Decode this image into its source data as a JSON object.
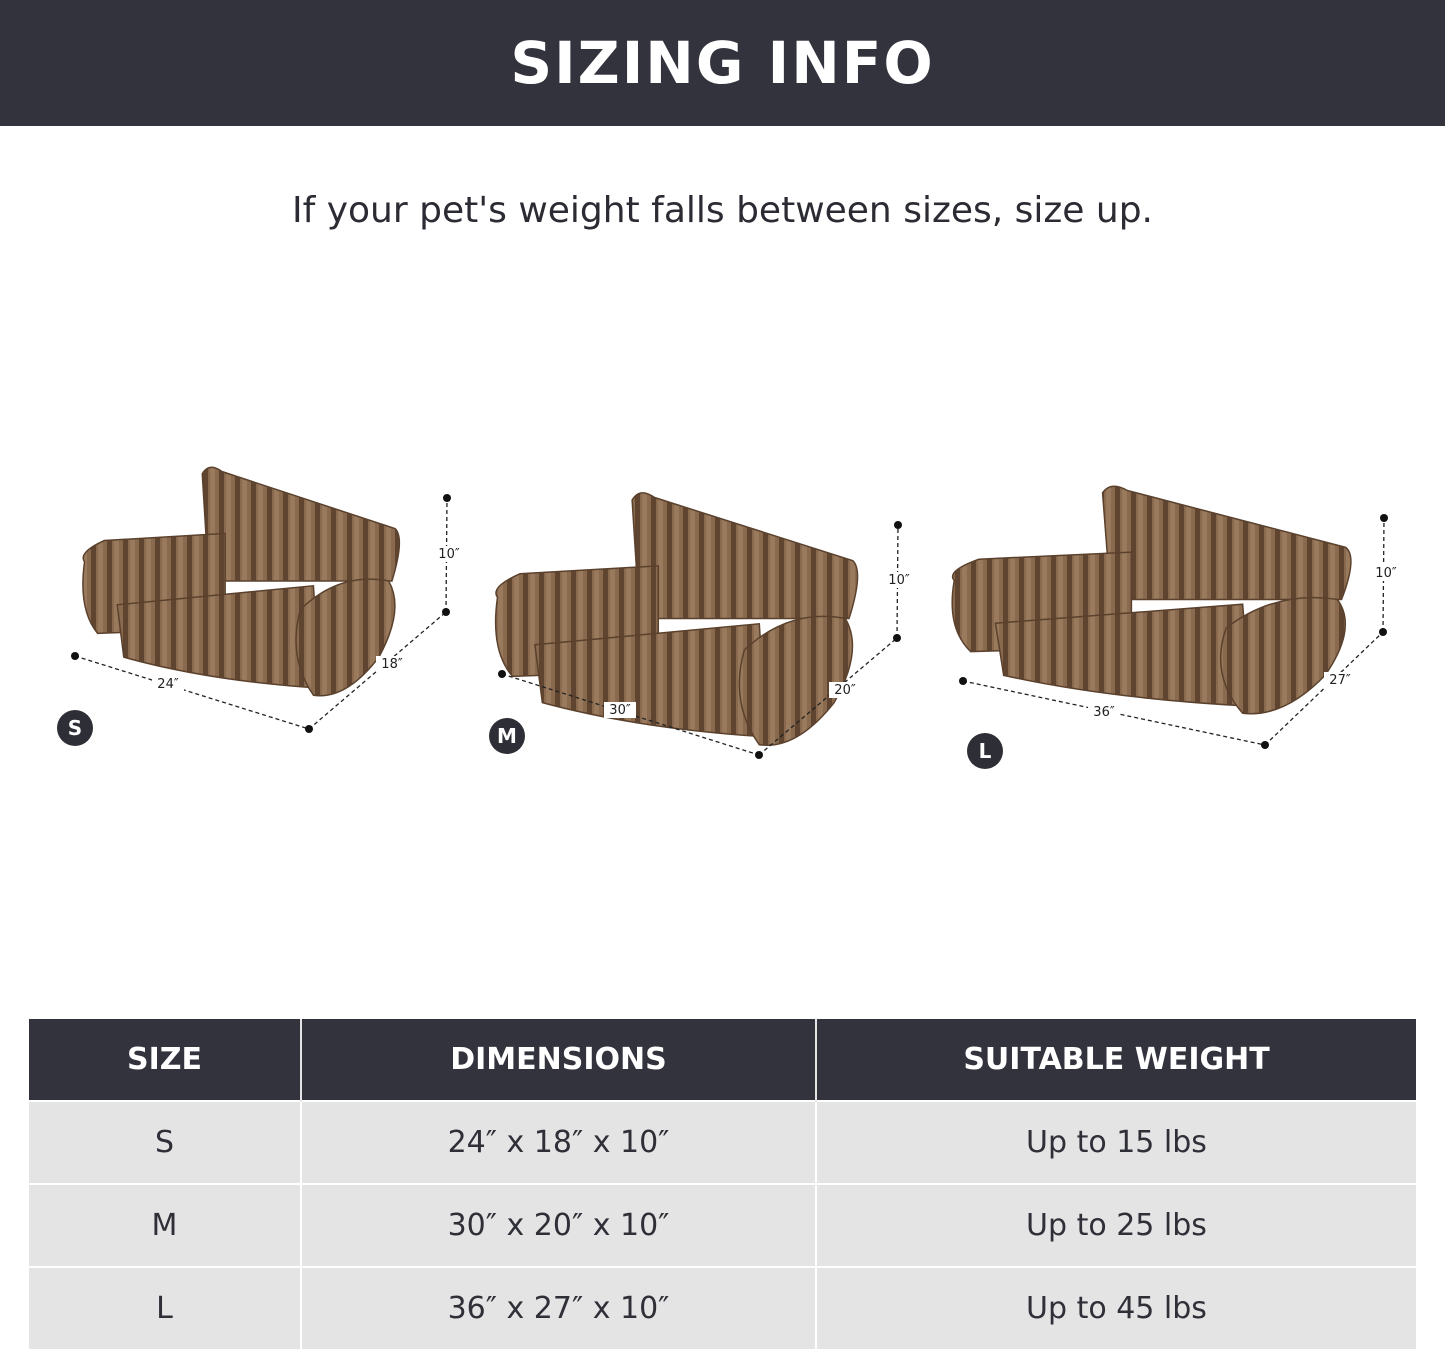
{
  "header": {
    "title": "SIZING INFO"
  },
  "subtitle": "If your pet's weight falls between sizes, size up.",
  "colors": {
    "header_bg": "#33333e",
    "row_bg": "#e4e4e4",
    "bed_brown": "#7d5d42"
  },
  "beds": [
    {
      "size": "S",
      "width": "24″",
      "depth": "18″",
      "height": "10″"
    },
    {
      "size": "M",
      "width": "30″",
      "depth": "20″",
      "height": "10″"
    },
    {
      "size": "L",
      "width": "36″",
      "depth": "27″",
      "height": "10″"
    }
  ],
  "table": {
    "headers": [
      "SIZE",
      "DIMENSIONS",
      "SUITABLE WEIGHT"
    ],
    "rows": [
      [
        "S",
        "24″ x 18″ x 10″",
        "Up to 15 lbs"
      ],
      [
        "M",
        "30″ x 20″ x 10″",
        "Up to 25 lbs"
      ],
      [
        "L",
        "36″ x 27″ x 10″",
        "Up to 45 lbs"
      ]
    ]
  }
}
